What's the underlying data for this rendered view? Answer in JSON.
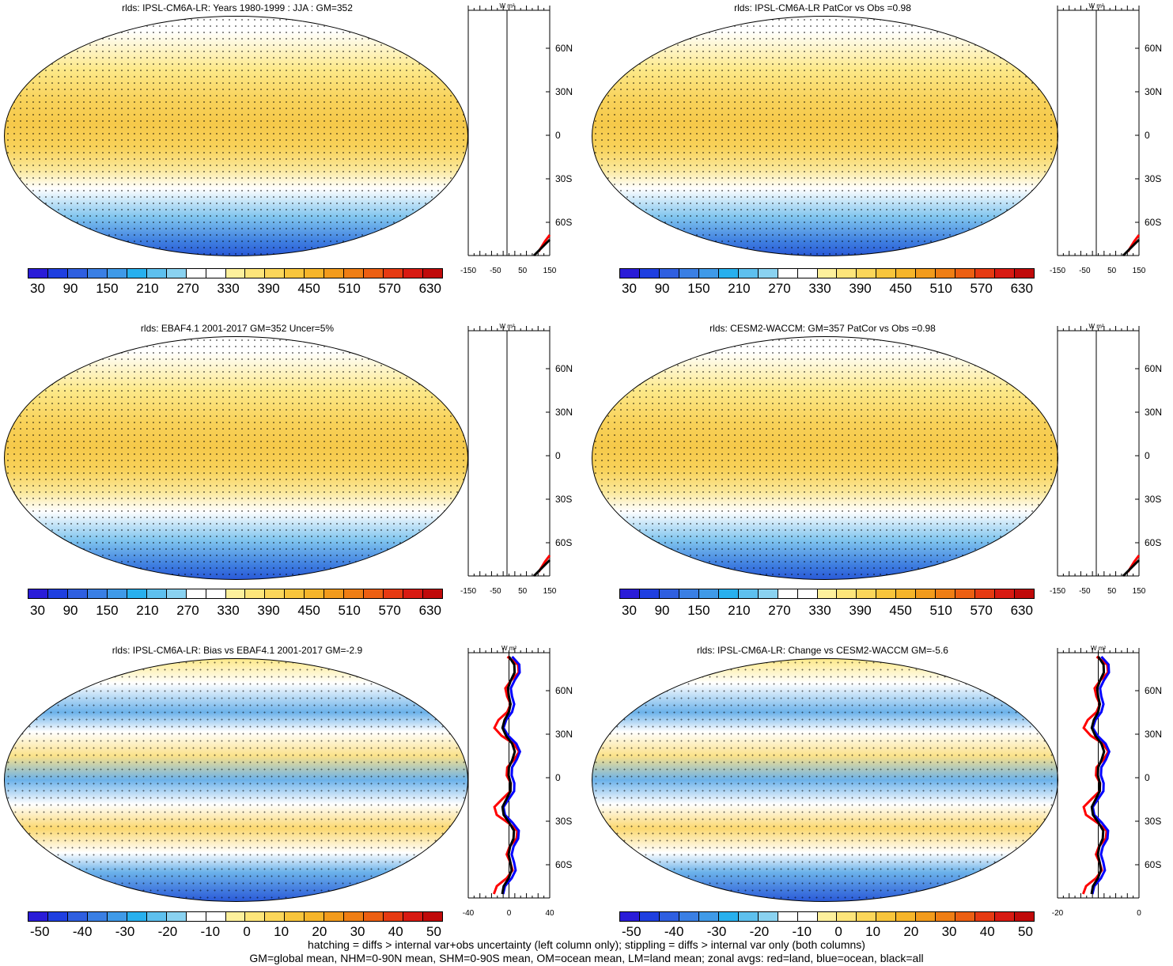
{
  "panels": [
    {
      "title": "rlds: IPSL-CM6A-LR: Years 1980-1999 : JJA : GM=352",
      "type": "clim"
    },
    {
      "title": "rlds: IPSL-CM6A-LR PatCor vs Obs =0.98",
      "type": "clim"
    },
    {
      "title": "rlds: EBAF4.1 2001-2017 GM=352 Uncer=5%",
      "type": "clim"
    },
    {
      "title": "rlds: CESM2-WACCM: GM=357 PatCor vs Obs =0.98",
      "type": "clim"
    },
    {
      "title": "rlds: IPSL-CM6A-LR: Bias vs EBAF4.1 2001-2017 GM=-2.9",
      "type": "diff"
    },
    {
      "title": "rlds: IPSL-CM6A-LR: Change vs CESM2-WACCM GM=-5.6",
      "type": "diff"
    }
  ],
  "colorbars": {
    "clim": {
      "labels": [
        "30",
        "90",
        "150",
        "210",
        "270",
        "330",
        "390",
        "450",
        "510",
        "570",
        "630"
      ],
      "colors": [
        "#2a1cd8",
        "#1f3fe0",
        "#2f5fe0",
        "#3a7fe4",
        "#3f9ae8",
        "#28b0ee",
        "#5ec0ee",
        "#8ad2f0",
        "#ffffff",
        "#ffffff",
        "#fdf09c",
        "#fde57a",
        "#fbd65a",
        "#f8c53c",
        "#f6b52a",
        "#f29b1c",
        "#ef7e14",
        "#ec5f12",
        "#e63a12",
        "#d81a12",
        "#c00a0a"
      ]
    },
    "diff": {
      "labels": [
        "-50",
        "-40",
        "-30",
        "-20",
        "-10",
        "0",
        "10",
        "20",
        "30",
        "40",
        "50"
      ],
      "colors": [
        "#2a1cd8",
        "#1f3fe0",
        "#2f5fe0",
        "#3a7fe4",
        "#3f9ae8",
        "#28b0ee",
        "#5ec0ee",
        "#8ad2f0",
        "#ffffff",
        "#ffffff",
        "#fdf09c",
        "#fde57a",
        "#fbd65a",
        "#f8c53c",
        "#f6b52a",
        "#f29b1c",
        "#ef7e14",
        "#ec5f12",
        "#e63a12",
        "#d81a12",
        "#c00a0a"
      ]
    }
  },
  "zonal": {
    "unit": "W m²",
    "lat_labels": [
      "60N",
      "30N",
      "0",
      "30S",
      "60S"
    ],
    "clim_ticks": [
      "-150",
      "-50",
      "50",
      "150"
    ],
    "diff_ticks_left": [
      "-40",
      "0",
      "40"
    ],
    "diff_ticks_right": [
      "-20",
      "0"
    ]
  },
  "footer": {
    "line1": "hatching = diffs > internal var+obs uncertainty (left column only); stippling = diffs > internal var only (both columns)",
    "line2": "GM=global mean, NHM=0-90N mean, SHM=0-90S mean, OM=ocean mean, LM=land mean; zonal avgs: red=land, blue=ocean, black=all"
  },
  "colors": {
    "land": "#ff0000",
    "ocean": "#0000ff",
    "all": "#000000"
  }
}
